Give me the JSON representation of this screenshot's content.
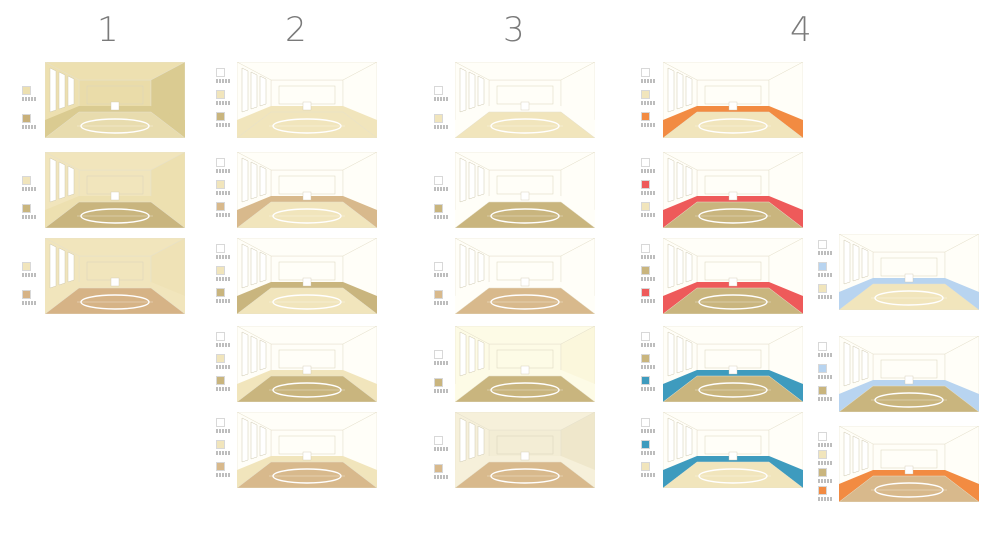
{
  "columns": [
    {
      "number": "1",
      "rooms": [
        {
          "wall": "#EDE0B0",
          "side": "#DACB91",
          "floor": "#E8DCAE",
          "band": "#DACB91",
          "back": "#EADCA9",
          "legend": [
            "#EDE0B0",
            "#C8B07A"
          ]
        },
        {
          "wall": "#F1E5BC",
          "side": "#EDE0B0",
          "floor": "#C9B57E",
          "band": "#EDE0B0",
          "back": "#F1E5BC",
          "legend": [
            "#F1E5BC",
            "#C9B57E"
          ]
        },
        {
          "wall": "#F1E5BC",
          "side": "#EFE2B6",
          "floor": "#D6B386",
          "band": "#F1E5BC",
          "back": "#F1E5BC",
          "legend": [
            "#F1E5BC",
            "#D6B386"
          ]
        }
      ]
    },
    {
      "number": "2",
      "rooms": [
        {
          "wall": "#FFFEF8",
          "side": "#FFFEF8",
          "floor": "#F1E5BC",
          "band": "#F1E5BC",
          "back": "#FFFEF8",
          "legend": [
            "#FFFFFF",
            "#F1E5BC",
            "#C9B57E"
          ]
        },
        {
          "wall": "#FFFEF8",
          "side": "#FFFEF8",
          "floor": "#F1E5BC",
          "band": "#D8B98C",
          "back": "#FFFEF8",
          "legend": [
            "#FFFFFF",
            "#F1E5BC",
            "#D8B98C"
          ]
        },
        {
          "wall": "#FFFEF8",
          "side": "#FFFEF8",
          "floor": "#F1E5BC",
          "band": "#C9B57E",
          "back": "#FFFEF8",
          "legend": [
            "#FFFFFF",
            "#F1E5BC",
            "#C9B57E"
          ]
        },
        {
          "wall": "#FFFEF8",
          "side": "#FFFEF8",
          "floor": "#C9B57E",
          "band": "#F1E5BC",
          "back": "#FFFEF8",
          "legend": [
            "#FFFFFF",
            "#F1E5BC",
            "#C9B57E"
          ]
        },
        {
          "wall": "#FFFEF8",
          "side": "#FFFEF8",
          "floor": "#D8B98C",
          "band": "#F1E5BC",
          "back": "#FFFEF8",
          "legend": [
            "#FFFFFF",
            "#F1E5BC",
            "#D8B98C"
          ]
        }
      ]
    },
    {
      "number": "3",
      "rooms": [
        {
          "wall": "#FFFEF8",
          "side": "#FFFEF8",
          "floor": "#F1E5BC",
          "band": "#FFFEF8",
          "back": "#FFFEF8",
          "legend": [
            "#FFFFFF",
            "#F1E5BC"
          ]
        },
        {
          "wall": "#FFFEF8",
          "side": "#FFFEF8",
          "floor": "#C9B57E",
          "band": "#FFFEF8",
          "back": "#FFFEF8",
          "legend": [
            "#FFFFFF",
            "#C9B57E"
          ]
        },
        {
          "wall": "#FFFEF8",
          "side": "#FFFEF8",
          "floor": "#D8B98C",
          "band": "#FFFEF8",
          "back": "#FFFEF8",
          "legend": [
            "#FFFFFF",
            "#D8B98C"
          ]
        },
        {
          "wall": "#FDFBE6",
          "side": "#FBF7DC",
          "floor": "#C9B57E",
          "band": "#FDFBE6",
          "back": "#FDFBE6",
          "legend": [
            "#FFFFFF",
            "#C9B57E"
          ]
        },
        {
          "wall": "#F6F0DA",
          "side": "#EFE7CB",
          "floor": "#D8B98C",
          "band": "#F6F0DA",
          "back": "#F3EDD5",
          "legend": [
            "#FFFFFF",
            "#D8B98C"
          ]
        }
      ]
    },
    {
      "number": "4",
      "rooms": [
        {
          "wall": "#FFFEF8",
          "side": "#FFFEF8",
          "floor": "#F1E5BC",
          "band": "#F28B42",
          "back": "#FFFEF8",
          "legend": [
            "#FFFFFF",
            "#F1E5BC",
            "#F28B42"
          ]
        },
        {
          "wall": "#FFFEF8",
          "side": "#FFFEF8",
          "floor": "#C9B57E",
          "band": "#EE5A5A",
          "back": "#FFFEF8",
          "legend": [
            "#FFFFFF",
            "#EE5A5A",
            "#F1E5BC"
          ]
        },
        {
          "wall": "#FFFEF8",
          "side": "#FFFEF8",
          "floor": "#C9B57E",
          "band": "#EE5A5A",
          "back": "#FFFEF8",
          "legend": [
            "#FFFFFF",
            "#C9B57E",
            "#EE5A5A"
          ]
        },
        {
          "wall": "#FFFEF8",
          "side": "#FFFEF8",
          "floor": "#C9B57E",
          "band": "#3E9BBE",
          "back": "#FFFEF8",
          "legend": [
            "#FFFFFF",
            "#C9B57E",
            "#3E9BBE"
          ]
        },
        {
          "wall": "#FFFEF8",
          "side": "#FFFEF8",
          "floor": "#F1E5BC",
          "band": "#3E9BBE",
          "back": "#FFFEF8",
          "legend": [
            "#FFFFFF",
            "#3E9BBE",
            "#F1E5BC"
          ]
        }
      ]
    },
    {
      "number": "",
      "rooms": [
        {
          "wall": "#FFFEF8",
          "side": "#FFFEF8",
          "floor": "#F1E5BC",
          "band": "#B8D4F0",
          "back": "#FFFEF8",
          "legend": [
            "#FFFFFF",
            "#B8D4F0",
            "#F1E5BC"
          ]
        },
        {
          "wall": "#FFFEF8",
          "side": "#FFFEF8",
          "floor": "#C9B57E",
          "band": "#B8D4F0",
          "back": "#FFFEF8",
          "legend": [
            "#FFFFFF",
            "#B8D4F0",
            "#C9B57E"
          ]
        },
        {
          "wall": "#FFFEF8",
          "side": "#FFFEF8",
          "floor": "#D8B98C",
          "band": "#F28B42",
          "back": "#FFFEF8",
          "legend": [
            "#FFFFFF",
            "#F1E5BC",
            "#C9B57E",
            "#F28B42"
          ]
        }
      ]
    }
  ]
}
